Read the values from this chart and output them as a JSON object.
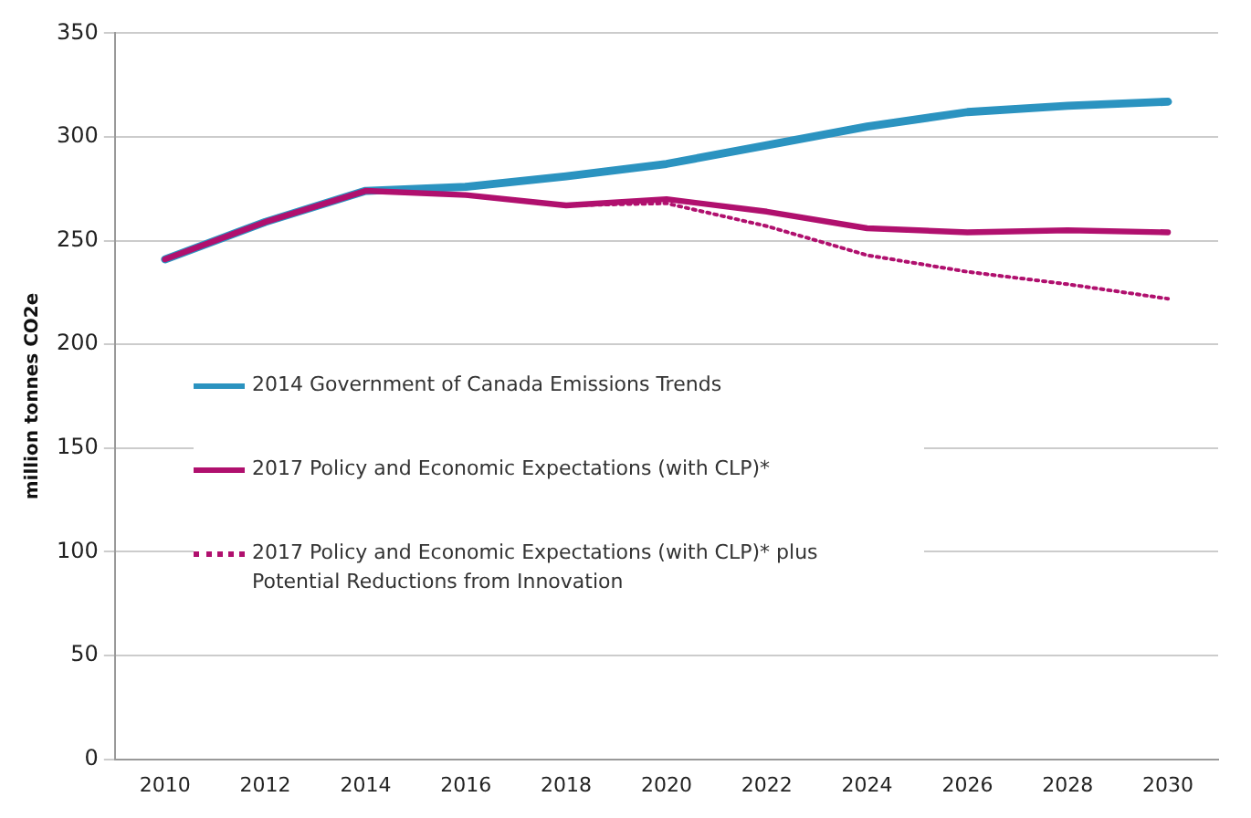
{
  "chart_data": {
    "type": "line",
    "ylabel": "million tonnes CO2e",
    "categories": [
      "2010",
      "2012",
      "2014",
      "2016",
      "2018",
      "2020",
      "2022",
      "2024",
      "2026",
      "2028",
      "2030"
    ],
    "series": [
      {
        "name": "2014 Government of Canada Emissions Trends",
        "color": "#2b93c0",
        "line_style": "solid",
        "values": [
          241,
          259,
          274,
          276,
          281,
          287,
          296,
          305,
          312,
          315,
          317
        ]
      },
      {
        "name": "2017 Policy and Economic Expectations (with CLP)*",
        "color": "#b0106e",
        "line_style": "solid",
        "values": [
          241,
          259,
          274,
          272,
          267,
          270,
          264,
          256,
          254,
          255,
          254
        ]
      },
      {
        "name": "2017 Policy and Economic Expectations (with CLP)* plus Potential Reductions from Innovation",
        "color": "#b0106e",
        "line_style": "dotted",
        "values": [
          241,
          259,
          274,
          272,
          267,
          268,
          257,
          243,
          235,
          229,
          222
        ]
      }
    ],
    "ylim": [
      0,
      350
    ],
    "yticks": [
      0,
      50,
      100,
      150,
      200,
      250,
      300,
      350
    ],
    "grid": "y",
    "legend": "left",
    "marker": "none"
  }
}
